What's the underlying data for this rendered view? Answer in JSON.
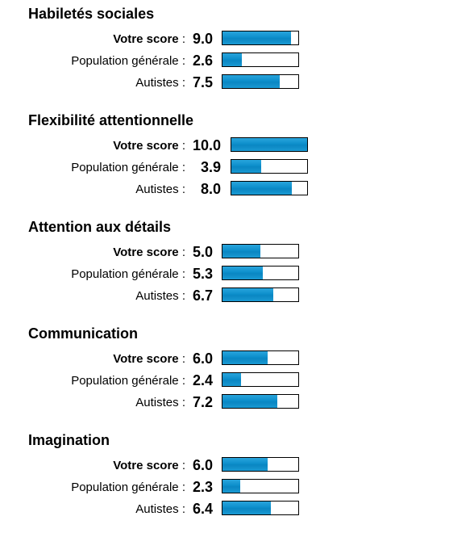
{
  "sections": [
    {
      "title": "Habiletés sociales",
      "rows": [
        {
          "label": "Votre score",
          "suffix": " :",
          "value": "9.0",
          "fraction": 0.9
        },
        {
          "label": "Population générale",
          "suffix": " :",
          "value": "2.6",
          "fraction": 0.26
        },
        {
          "label": "Autistes",
          "suffix": " :",
          "value": "7.5",
          "fraction": 0.75
        }
      ]
    },
    {
      "title": "Flexibilité attentionnelle",
      "rows": [
        {
          "label": "Votre score",
          "suffix": " :",
          "value": "10.0",
          "fraction": 1.0
        },
        {
          "label": "Population générale",
          "suffix": " :",
          "value": "3.9",
          "fraction": 0.39
        },
        {
          "label": "Autistes",
          "suffix": " :",
          "value": "8.0",
          "fraction": 0.8
        }
      ]
    },
    {
      "title": "Attention aux détails",
      "rows": [
        {
          "label": "Votre score",
          "suffix": " :",
          "value": "5.0",
          "fraction": 0.5
        },
        {
          "label": "Population générale",
          "suffix": " :",
          "value": "5.3",
          "fraction": 0.53
        },
        {
          "label": "Autistes",
          "suffix": " :",
          "value": "6.7",
          "fraction": 0.67
        }
      ]
    },
    {
      "title": "Communication",
      "rows": [
        {
          "label": "Votre score",
          "suffix": " :",
          "value": "6.0",
          "fraction": 0.6
        },
        {
          "label": "Population générale",
          "suffix": " :",
          "value": "2.4",
          "fraction": 0.24
        },
        {
          "label": "Autistes",
          "suffix": " :",
          "value": "7.2",
          "fraction": 0.72
        }
      ]
    },
    {
      "title": "Imagination",
      "rows": [
        {
          "label": "Votre score",
          "suffix": " :",
          "value": "6.0",
          "fraction": 0.6
        },
        {
          "label": "Population générale",
          "suffix": " :",
          "value": "2.3",
          "fraction": 0.23
        },
        {
          "label": "Autistes",
          "suffix": " :",
          "value": "6.4",
          "fraction": 0.64
        }
      ]
    }
  ],
  "colors": {
    "bar_fill": "#0d8fcb",
    "bar_border": "#000000"
  }
}
